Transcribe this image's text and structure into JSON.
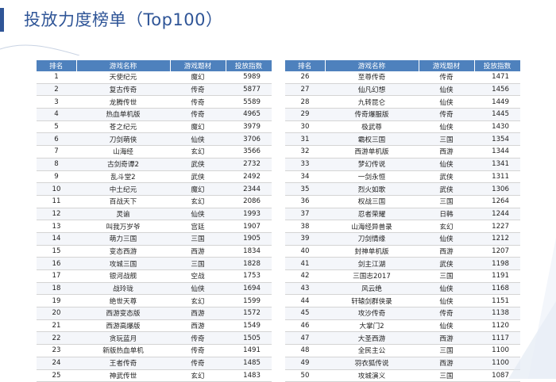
{
  "title": "投放力度榜单（Top100）",
  "headers": [
    "排名",
    "游戏名称",
    "游戏题材",
    "投放指数"
  ],
  "left_rows": [
    [
      "1",
      "天使纪元",
      "魔幻",
      "5989"
    ],
    [
      "2",
      "复古传奇",
      "传奇",
      "5877"
    ],
    [
      "3",
      "龙腾传世",
      "传奇",
      "5589"
    ],
    [
      "4",
      "热血单机版",
      "传奇",
      "4965"
    ],
    [
      "5",
      "苍之纪元",
      "魔幻",
      "3979"
    ],
    [
      "6",
      "刀剑萌侠",
      "仙侠",
      "3706"
    ],
    [
      "7",
      "山海经",
      "玄幻",
      "3566"
    ],
    [
      "8",
      "古剑奇谭2",
      "武侠",
      "2732"
    ],
    [
      "9",
      "乱斗堂2",
      "武侠",
      "2492"
    ],
    [
      "10",
      "中土纪元",
      "魔幻",
      "2344"
    ],
    [
      "11",
      "百战天下",
      "玄幻",
      "2086"
    ],
    [
      "12",
      "灵谕",
      "仙侠",
      "1993"
    ],
    [
      "13",
      "叫我万岁爷",
      "宫廷",
      "1907"
    ],
    [
      "14",
      "萌力三国",
      "三国",
      "1905"
    ],
    [
      "15",
      "变态西游",
      "西游",
      "1834"
    ],
    [
      "16",
      "攻城三国",
      "三国",
      "1828"
    ],
    [
      "17",
      "银河战舰",
      "空战",
      "1753"
    ],
    [
      "18",
      "战玲珑",
      "仙侠",
      "1694"
    ],
    [
      "19",
      "绝世天尊",
      "玄幻",
      "1599"
    ],
    [
      "20",
      "西游变态版",
      "西游",
      "1572"
    ],
    [
      "21",
      "西游高爆版",
      "西游",
      "1549"
    ],
    [
      "22",
      "贪玩蓝月",
      "传奇",
      "1505"
    ],
    [
      "23",
      "新版热血单机",
      "传奇",
      "1491"
    ],
    [
      "24",
      "王者传奇",
      "传奇",
      "1485"
    ],
    [
      "25",
      "神武传世",
      "玄幻",
      "1483"
    ]
  ],
  "right_rows": [
    [
      "26",
      "至尊传奇",
      "传奇",
      "1471"
    ],
    [
      "27",
      "仙凡幻想",
      "仙侠",
      "1456"
    ],
    [
      "28",
      "九转昆仑",
      "仙侠",
      "1449"
    ],
    [
      "29",
      "传奇爆服版",
      "传奇",
      "1445"
    ],
    [
      "30",
      "极武尊",
      "仙侠",
      "1430"
    ],
    [
      "31",
      "霸权三国",
      "三国",
      "1354"
    ],
    [
      "32",
      "西游单机版",
      "西游",
      "1344"
    ],
    [
      "33",
      "梦幻传说",
      "仙侠",
      "1341"
    ],
    [
      "34",
      "一剑永恒",
      "武侠",
      "1311"
    ],
    [
      "35",
      "烈火如歌",
      "武侠",
      "1306"
    ],
    [
      "36",
      "权战三国",
      "三国",
      "1264"
    ],
    [
      "37",
      "忍者荣耀",
      "日韩",
      "1244"
    ],
    [
      "38",
      "山海经异兽录",
      "玄幻",
      "1227"
    ],
    [
      "39",
      "刀剑情缘",
      "仙侠",
      "1212"
    ],
    [
      "40",
      "封神单机版",
      "西游",
      "1207"
    ],
    [
      "41",
      "剑主江湖",
      "武侠",
      "1198"
    ],
    [
      "42",
      "三国志2017",
      "三国",
      "1191"
    ],
    [
      "43",
      "风云绝",
      "仙侠",
      "1168"
    ],
    [
      "44",
      "轩辕剑群侠录",
      "仙侠",
      "1151"
    ],
    [
      "45",
      "攻沙传奇",
      "传奇",
      "1138"
    ],
    [
      "46",
      "大掌门2",
      "仙侠",
      "1120"
    ],
    [
      "47",
      "大圣西游",
      "西游",
      "1117"
    ],
    [
      "48",
      "全民主公",
      "三国",
      "1100"
    ],
    [
      "49",
      "羽衣狐传说",
      "西游",
      "1100"
    ],
    [
      "50",
      "攻城演义",
      "三国",
      "1087"
    ]
  ]
}
